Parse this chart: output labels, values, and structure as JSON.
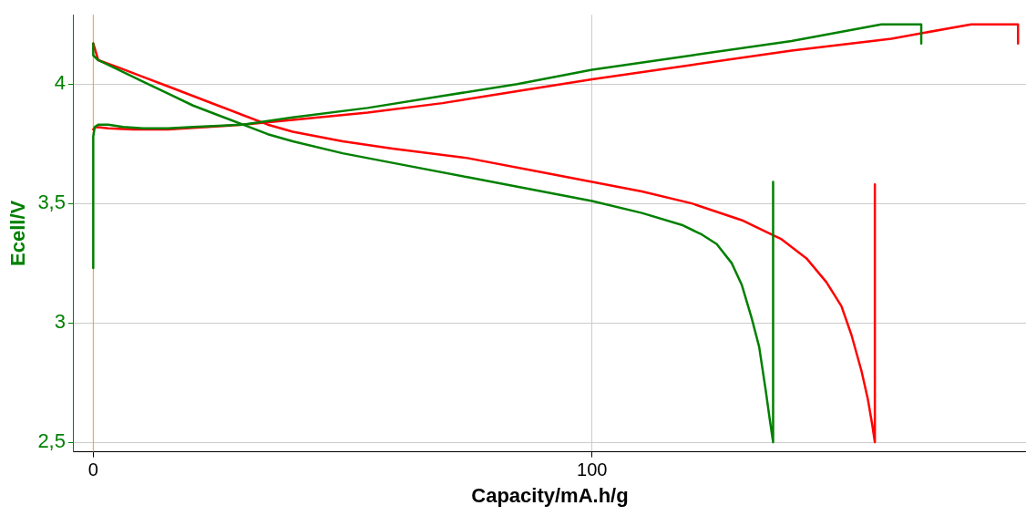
{
  "chart_data": {
    "type": "line",
    "xlabel": "Capacity/mA.h/g",
    "ylabel": "Ecell/V",
    "xlim": [
      -3.9,
      187
    ],
    "xticks": [
      0,
      100
    ],
    "ylim": [
      2.46,
      4.29
    ],
    "yticks": [
      {
        "value": 2.5,
        "label": "2,5"
      },
      3,
      {
        "value": 3.5,
        "label": "3,5"
      },
      4
    ],
    "grid": true,
    "legend": false,
    "marker": "none",
    "line_style": "solid",
    "ref_lines": [
      {
        "axis": "x",
        "value": 0,
        "color": "#f0a050"
      }
    ],
    "series": [
      {
        "color": "#008000",
        "x": [
          0,
          0,
          0.3,
          1,
          3,
          6,
          10,
          15,
          20,
          30,
          40,
          55,
          70,
          85,
          100,
          120,
          140,
          158,
          166,
          166
        ],
        "values": [
          3.23,
          3.78,
          3.82,
          3.83,
          3.83,
          3.82,
          3.815,
          3.815,
          3.82,
          3.83,
          3.86,
          3.9,
          3.95,
          4.0,
          4.06,
          4.12,
          4.18,
          4.25,
          4.25,
          4.17
        ]
      },
      {
        "color": "#008000",
        "x": [
          0,
          0,
          1,
          5,
          10,
          15,
          20,
          25,
          30,
          35,
          40,
          50,
          60,
          75,
          90,
          100,
          110,
          118,
          122,
          125,
          128,
          130,
          132,
          133.5,
          134.8,
          135.6,
          136.3,
          136.3
        ],
        "values": [
          4.17,
          4.12,
          4.1,
          4.06,
          4.01,
          3.96,
          3.91,
          3.87,
          3.83,
          3.79,
          3.76,
          3.71,
          3.67,
          3.61,
          3.55,
          3.51,
          3.46,
          3.41,
          3.37,
          3.33,
          3.25,
          3.16,
          3.02,
          2.9,
          2.72,
          2.6,
          2.5,
          3.59
        ]
      },
      {
        "color": "#ff0000",
        "x": [
          0,
          0.5,
          3,
          8,
          15,
          30,
          40,
          55,
          70,
          85,
          100,
          120,
          140,
          160,
          176,
          185.4,
          185.4
        ],
        "values": [
          3.81,
          3.82,
          3.815,
          3.81,
          3.81,
          3.83,
          3.85,
          3.88,
          3.92,
          3.97,
          4.02,
          4.08,
          4.14,
          4.19,
          4.25,
          4.25,
          4.17
        ]
      },
      {
        "color": "#ff0000",
        "x": [
          0,
          1,
          5,
          10,
          15,
          20,
          25,
          30,
          35,
          40,
          50,
          60,
          75,
          90,
          100,
          110,
          120,
          130,
          138,
          143,
          147,
          150,
          152,
          154,
          155.3,
          156.2,
          156.7,
          156.7
        ],
        "values": [
          4.17,
          4.1,
          4.07,
          4.03,
          3.99,
          3.95,
          3.91,
          3.87,
          3.83,
          3.8,
          3.76,
          3.73,
          3.69,
          3.63,
          3.59,
          3.55,
          3.5,
          3.43,
          3.35,
          3.27,
          3.17,
          3.07,
          2.95,
          2.8,
          2.68,
          2.57,
          2.5,
          3.58
        ]
      }
    ]
  }
}
